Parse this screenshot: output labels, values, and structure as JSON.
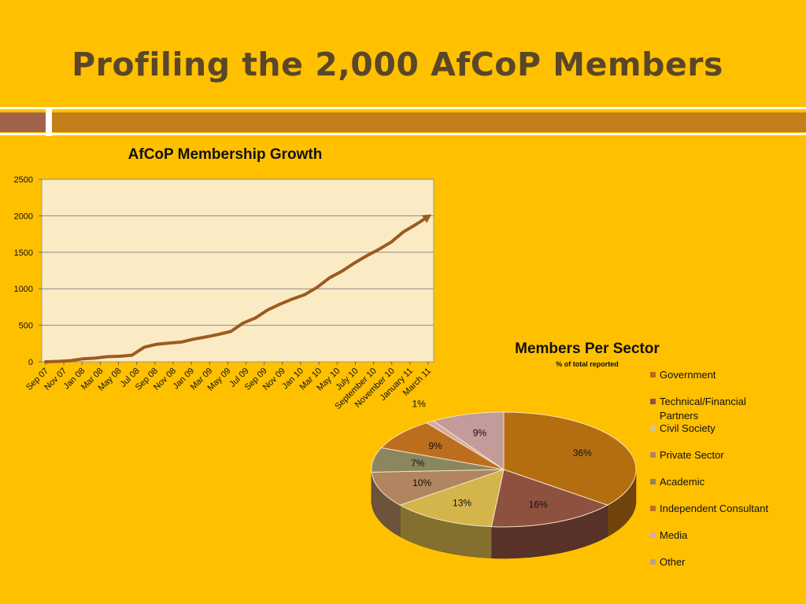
{
  "slide": {
    "title": "Profiling the 2,000 AfCoP Members"
  },
  "colors": {
    "background": "#FFC000",
    "title": "#5A4628",
    "line": "#9C5B22",
    "plot_bg": "#FBEBC4"
  },
  "chart_data": [
    {
      "type": "line",
      "title": "AfCoP Membership Growth",
      "xlabel": "",
      "ylabel": "",
      "ylim": [
        0,
        2500
      ],
      "yticks": [
        0,
        500,
        1000,
        1500,
        2000,
        2500
      ],
      "grid": true,
      "legend": "none",
      "x_tick_labels": [
        "Sep 07",
        "Nov 07",
        "Jan 08",
        "Mar 08",
        "May 08",
        "Jul 08",
        "Sep 08",
        "Nov 08",
        "Jan 09",
        "Mar 09",
        "May 09",
        "Jul 09",
        "Sep 09",
        "Nov 09",
        "Jan 10",
        "Mar 10",
        "May 10",
        "July 10",
        "September 10",
        "November 10",
        "January 11",
        "March 11"
      ],
      "series": [
        {
          "values": [
            0,
            5,
            15,
            40,
            50,
            70,
            75,
            90,
            200,
            240,
            255,
            270,
            310,
            340,
            375,
            415,
            530,
            600,
            710,
            790,
            860,
            920,
            1020,
            1150,
            1240,
            1350,
            1450,
            1540,
            1640,
            1780,
            1880,
            1990
          ]
        }
      ]
    },
    {
      "type": "pie",
      "title": "Members Per Sector",
      "subtitle": "% of total reported",
      "legend": "right",
      "categories": [
        "Government",
        "Technical/Financial Partners",
        "Civil Society",
        "Private Sector",
        "Academic",
        "Independent Consultant",
        "Media",
        "Other"
      ],
      "values": [
        36,
        16,
        13,
        10,
        7,
        9,
        1,
        9
      ],
      "labels": [
        "36%",
        "16%",
        "13%",
        "10%",
        "7%",
        "9%",
        "1%",
        "9%"
      ],
      "colors": [
        "#B46E10",
        "#8E5140",
        "#D4B54C",
        "#B08560",
        "#8B8560",
        "#BC6E1E",
        "#D9A9A5",
        "#C29B9A"
      ],
      "legend_colors": [
        "#B46E10",
        "#8E5140",
        "#D9C48A",
        "#B08560",
        "#8B8560",
        "#BC6E1E",
        "#D9A9A5",
        "#C29B9A"
      ]
    }
  ]
}
